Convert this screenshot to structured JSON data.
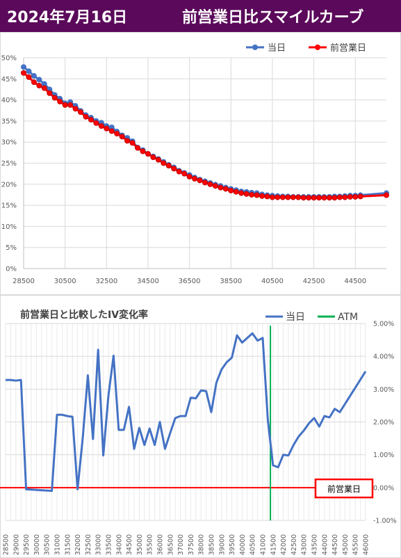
{
  "header": {
    "date": "2024年7月16日",
    "title": "前営業日比スマイルカーブ"
  },
  "chart_data": [
    {
      "type": "line",
      "title": "",
      "xlabel": "",
      "ylabel": "",
      "xlim": [
        28500,
        46000
      ],
      "ylim": [
        0,
        50
      ],
      "x_ticks": [
        28500,
        30500,
        32500,
        34500,
        36500,
        38500,
        40500,
        42500,
        44500
      ],
      "y_ticks": [
        "0%",
        "5%",
        "10%",
        "15%",
        "20%",
        "25%",
        "30%",
        "35%",
        "40%",
        "45%",
        "50%"
      ],
      "legend_position": "top-right",
      "grid": true,
      "series": [
        {
          "name": "当日",
          "color": "#4472c4",
          "x": [
            28500,
            28750,
            29000,
            29250,
            29500,
            29750,
            30000,
            30250,
            30500,
            30750,
            31000,
            31250,
            31500,
            31750,
            32000,
            32250,
            32500,
            32750,
            33000,
            33250,
            33500,
            33750,
            34000,
            34250,
            34500,
            34750,
            35000,
            35250,
            35500,
            35750,
            36000,
            36250,
            36500,
            36750,
            37000,
            37250,
            37500,
            37750,
            38000,
            38250,
            38500,
            38750,
            39000,
            39250,
            39500,
            39750,
            40000,
            40250,
            40500,
            40750,
            41000,
            41250,
            41500,
            41750,
            42000,
            42250,
            42500,
            42750,
            43000,
            43250,
            43500,
            43750,
            44000,
            44250,
            44500,
            44750,
            46000
          ],
          "y": [
            47.8,
            46.8,
            45.7,
            44.8,
            43.8,
            42.5,
            41.2,
            40.3,
            39.2,
            39.5,
            38.6,
            37.4,
            36.4,
            35.8,
            35.0,
            34.6,
            33.8,
            33.5,
            32.5,
            31.6,
            31.0,
            30.2,
            28.7,
            28.1,
            27.2,
            26.6,
            26.0,
            25.3,
            24.6,
            24.0,
            23.2,
            22.7,
            22.2,
            21.6,
            21.1,
            20.7,
            20.3,
            19.9,
            19.6,
            19.2,
            18.9,
            18.6,
            18.3,
            18.2,
            18.0,
            17.9,
            17.6,
            17.4,
            17.3,
            17.2,
            17.1,
            17.1,
            17.0,
            17.0,
            17.0,
            17.0,
            17.0,
            17.0,
            17.0,
            17.0,
            17.1,
            17.1,
            17.2,
            17.3,
            17.3,
            17.4,
            17.9
          ]
        },
        {
          "name": "前営業日",
          "color": "#ff0000",
          "x": [
            28500,
            28750,
            29000,
            29250,
            29500,
            29750,
            30000,
            30250,
            30500,
            30750,
            31000,
            31250,
            31500,
            31750,
            32000,
            32250,
            32500,
            32750,
            33000,
            33250,
            33500,
            33750,
            34000,
            34250,
            34500,
            34750,
            35000,
            35250,
            35500,
            35750,
            36000,
            36250,
            36500,
            36750,
            37000,
            37250,
            37500,
            37750,
            38000,
            38250,
            38500,
            38750,
            39000,
            39250,
            39500,
            39750,
            40000,
            40250,
            40500,
            40750,
            41000,
            41250,
            41500,
            41750,
            42000,
            42250,
            42500,
            42750,
            43000,
            43250,
            43500,
            43750,
            44000,
            44250,
            44500,
            44750,
            46000
          ],
          "y": [
            46.4,
            45.4,
            44.2,
            43.4,
            42.8,
            41.6,
            40.5,
            39.6,
            38.8,
            38.8,
            37.9,
            37.1,
            36.0,
            35.3,
            34.5,
            33.8,
            33.2,
            32.6,
            32.0,
            31.3,
            30.3,
            29.8,
            28.6,
            27.8,
            27.2,
            26.4,
            25.8,
            25.0,
            24.4,
            23.7,
            23.0,
            22.5,
            21.8,
            21.3,
            20.9,
            20.4,
            20.0,
            19.6,
            19.2,
            18.9,
            18.5,
            18.2,
            17.9,
            17.7,
            17.5,
            17.4,
            17.2,
            17.1,
            16.9,
            16.9,
            16.9,
            16.9,
            16.9,
            16.9,
            16.8,
            16.8,
            16.8,
            16.8,
            16.8,
            16.8,
            16.8,
            16.9,
            16.9,
            17.0,
            17.0,
            17.1,
            17.4
          ]
        }
      ]
    },
    {
      "type": "line",
      "title": "前営業日と比較したIV変化率",
      "xlabel": "",
      "ylabel": "",
      "xlim": [
        28500,
        46000
      ],
      "ylim": [
        -1,
        5
      ],
      "x_ticks": [
        28500,
        29000,
        29500,
        30000,
        30500,
        31000,
        31500,
        32000,
        32500,
        33000,
        33500,
        34000,
        34500,
        35000,
        35500,
        36000,
        36500,
        37000,
        37500,
        38000,
        38500,
        39000,
        39500,
        40000,
        40500,
        41000,
        41500,
        42000,
        42500,
        43000,
        43500,
        44000,
        44500,
        45000,
        45500,
        46000
      ],
      "y_ticks": [
        "-1.00%",
        "0.00%",
        "1.00%",
        "2.00%",
        "3.00%",
        "4.00%",
        "5.00%"
      ],
      "legend_position": "top-right",
      "grid": true,
      "atm": 41375,
      "zero_label": "前営業日",
      "series": [
        {
          "name": "当日",
          "color": "#4472c4",
          "x": [
            28500,
            28750,
            29000,
            29250,
            29500,
            30750,
            31000,
            31250,
            31500,
            31750,
            32000,
            32250,
            32500,
            32750,
            33000,
            33250,
            33500,
            33750,
            34000,
            34250,
            34500,
            34750,
            35000,
            35250,
            35500,
            35750,
            36000,
            36250,
            36500,
            36750,
            37000,
            37250,
            37500,
            37750,
            38000,
            38250,
            38500,
            38750,
            39000,
            39250,
            39500,
            39750,
            40000,
            40250,
            40500,
            40750,
            41000,
            41250,
            41500,
            41750,
            42000,
            42250,
            42500,
            42750,
            43000,
            43250,
            43500,
            43750,
            44000,
            44250,
            44500,
            44750,
            46000
          ],
          "y": [
            3.28,
            3.28,
            3.26,
            3.28,
            -0.05,
            -0.1,
            2.22,
            2.22,
            2.18,
            2.16,
            -0.05,
            1.5,
            3.42,
            1.48,
            4.2,
            0.98,
            2.8,
            4.02,
            1.76,
            1.76,
            2.46,
            1.18,
            1.82,
            1.3,
            1.8,
            1.3,
            2.0,
            1.18,
            1.66,
            2.12,
            2.18,
            2.18,
            2.74,
            2.72,
            2.96,
            2.94,
            2.3,
            3.2,
            3.6,
            3.82,
            3.96,
            4.64,
            4.42,
            4.56,
            4.7,
            4.48,
            4.56,
            2.06,
            0.68,
            0.62,
            1.0,
            0.98,
            1.3,
            1.56,
            1.74,
            1.96,
            2.12,
            1.86,
            2.18,
            2.14,
            2.4,
            2.3,
            3.54
          ]
        }
      ]
    }
  ]
}
